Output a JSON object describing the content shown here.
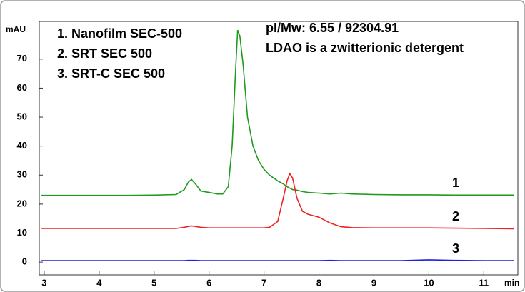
{
  "chart_data": {
    "type": "line",
    "x_label": "min",
    "y_label": "mAU",
    "legend_items": [
      "1.  Nanofilm SEC-500",
      "2.  SRT SEC 500",
      "3.  SRT-C SEC 500"
    ],
    "annotations": [
      "pI/Mw: 6.55 / 92304.91",
      "LDAO is a zwitterionic detergent"
    ],
    "x": [
      2.95,
      3.5,
      4,
      4.5,
      5,
      5.4,
      5.55,
      5.62,
      5.68,
      5.75,
      5.85,
      6.0,
      6.15,
      6.25,
      6.35,
      6.42,
      6.48,
      6.52,
      6.56,
      6.62,
      6.7,
      6.8,
      6.9,
      7.0,
      7.1,
      7.25,
      7.35,
      7.42,
      7.47,
      7.52,
      7.6,
      7.7,
      7.8,
      8.0,
      8.2,
      8.4,
      8.6,
      9.0,
      9.5,
      10,
      10.5,
      11,
      11.55
    ],
    "series": [
      {
        "name": "1",
        "color": "#1e9a1e",
        "values": [
          23,
          23,
          23,
          23,
          23.1,
          23.3,
          25,
          27.5,
          28.5,
          27,
          24.5,
          24,
          23.5,
          23.5,
          26,
          40,
          65,
          80,
          78,
          68,
          50,
          40,
          35,
          32,
          30,
          28,
          27,
          26,
          25.5,
          25,
          24.8,
          24.3,
          24,
          23.8,
          23.5,
          23.8,
          23.5,
          23.3,
          23.2,
          23.2,
          23.1,
          23.1,
          23.1
        ]
      },
      {
        "name": "2",
        "color": "#ee2222",
        "values": [
          11.6,
          11.6,
          11.6,
          11.6,
          11.6,
          11.6,
          12,
          12.3,
          12.5,
          12.3,
          12,
          11.8,
          11.8,
          11.8,
          11.8,
          11.8,
          11.8,
          11.8,
          11.8,
          11.8,
          11.8,
          11.8,
          11.8,
          11.8,
          12,
          14,
          22,
          28,
          30.5,
          29,
          22,
          17.5,
          16.5,
          15.5,
          13.5,
          12.2,
          11.9,
          11.8,
          11.8,
          11.8,
          11.7,
          11.6,
          11.5
        ]
      },
      {
        "name": "3",
        "color": "#2222dd",
        "values": [
          0.5,
          0.5,
          0.5,
          0.5,
          0.5,
          0.5,
          0.5,
          0.6,
          0.6,
          0.6,
          0.5,
          0.5,
          0.5,
          0.5,
          0.5,
          0.5,
          0.5,
          0.5,
          0.5,
          0.5,
          0.5,
          0.5,
          0.5,
          0.5,
          0.5,
          0.5,
          0.5,
          0.5,
          0.5,
          0.5,
          0.5,
          0.5,
          0.5,
          0.5,
          0.6,
          0.5,
          0.5,
          0.5,
          0.5,
          0.8,
          0.6,
          0.5,
          0.5
        ]
      }
    ],
    "xlim": [
      2.91,
      11.62
    ],
    "xticks": [
      3,
      4,
      5,
      6,
      7,
      8,
      9,
      10,
      11
    ],
    "ylim": [
      -4.4,
      83
    ],
    "yticks": [
      0,
      10,
      20,
      30,
      40,
      50,
      60,
      70
    ]
  }
}
